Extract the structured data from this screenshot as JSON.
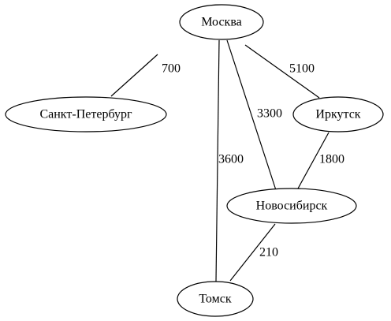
{
  "graph": {
    "nodes": [
      {
        "id": "moscow",
        "label": "Москва"
      },
      {
        "id": "spb",
        "label": "Санкт-Петербург"
      },
      {
        "id": "irkutsk",
        "label": "Иркутск"
      },
      {
        "id": "novosibirsk",
        "label": "Новосибирск"
      },
      {
        "id": "tomsk",
        "label": "Томск"
      }
    ],
    "edges": [
      {
        "from": "moscow",
        "to": "spb",
        "label": "700"
      },
      {
        "from": "moscow",
        "to": "irkutsk",
        "label": "5100"
      },
      {
        "from": "moscow",
        "to": "novosibirsk",
        "label": "3300"
      },
      {
        "from": "moscow",
        "to": "tomsk",
        "label": "3600"
      },
      {
        "from": "irkutsk",
        "to": "novosibirsk",
        "label": "1800"
      },
      {
        "from": "novosibirsk",
        "to": "tomsk",
        "label": "210"
      }
    ]
  }
}
